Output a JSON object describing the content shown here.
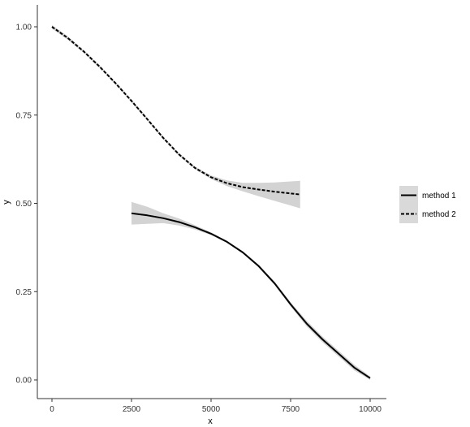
{
  "chart_data": {
    "type": "line",
    "title": "",
    "xlabel": "x",
    "ylabel": "y",
    "xlim": [
      0,
      10000
    ],
    "ylim": [
      0,
      1
    ],
    "xticks": [
      0,
      2500,
      5000,
      7500,
      10000
    ],
    "xtick_labels": [
      "0",
      "2500",
      "5000",
      "7500",
      "10000"
    ],
    "yticks": [
      0,
      0.25,
      0.5,
      0.75,
      1.0
    ],
    "ytick_labels": [
      "0.00",
      "0.25",
      "0.50",
      "0.75",
      "1.00"
    ],
    "grid": false,
    "legend_position": "right",
    "series": [
      {
        "name": "method 1",
        "line_style": "solid",
        "x": [
          2500,
          3000,
          3500,
          4000,
          4500,
          5000,
          5500,
          6000,
          6500,
          7000,
          7500,
          8000,
          8500,
          9000,
          9500,
          10000
        ],
        "y": [
          0.472,
          0.466,
          0.458,
          0.447,
          0.432,
          0.414,
          0.391,
          0.361,
          0.322,
          0.273,
          0.214,
          0.16,
          0.115,
          0.075,
          0.035,
          0.005
        ],
        "ci_lower": [
          0.44,
          0.442,
          0.444,
          0.437,
          0.426,
          0.41,
          0.388,
          0.358,
          0.318,
          0.268,
          0.208,
          0.152,
          0.107,
          0.067,
          0.027,
          0.0
        ],
        "ci_upper": [
          0.504,
          0.49,
          0.472,
          0.457,
          0.438,
          0.418,
          0.394,
          0.364,
          0.326,
          0.278,
          0.22,
          0.168,
          0.123,
          0.083,
          0.043,
          0.01
        ]
      },
      {
        "name": "method 2",
        "line_style": "dashed",
        "x": [
          0,
          500,
          1000,
          1500,
          2000,
          2500,
          3000,
          3500,
          4000,
          4500,
          5000,
          5500,
          6000,
          6500,
          7000,
          7500,
          7800
        ],
        "y": [
          1.0,
          0.968,
          0.93,
          0.887,
          0.84,
          0.79,
          0.738,
          0.685,
          0.638,
          0.6,
          0.574,
          0.557,
          0.546,
          0.539,
          0.533,
          0.528,
          0.525
        ],
        "ci_lower": [
          0.995,
          0.963,
          0.926,
          0.883,
          0.836,
          0.786,
          0.734,
          0.681,
          0.634,
          0.596,
          0.569,
          0.549,
          0.534,
          0.52,
          0.507,
          0.494,
          0.486
        ],
        "ci_upper": [
          1.005,
          0.973,
          0.934,
          0.891,
          0.844,
          0.794,
          0.742,
          0.689,
          0.642,
          0.604,
          0.579,
          0.565,
          0.558,
          0.558,
          0.559,
          0.562,
          0.564
        ]
      }
    ],
    "colors": {
      "line": "#000000",
      "ribbon": "#d3d3d3",
      "legend_key_bg": "#d9d9d9",
      "axis": "#333333"
    }
  }
}
